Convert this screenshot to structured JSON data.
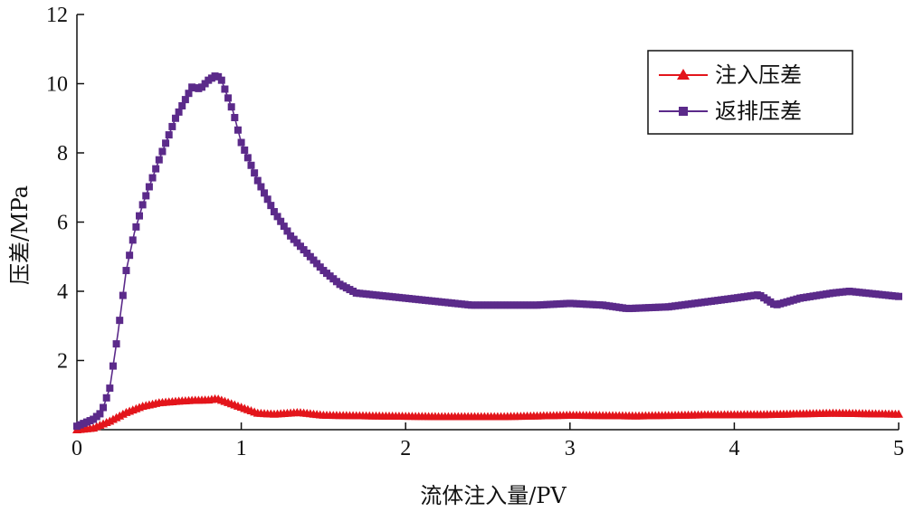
{
  "chart_data": {
    "type": "line",
    "xlabel": "流体注入量/PV",
    "ylabel": "压差/MPa",
    "xlim": [
      0,
      5
    ],
    "ylim": [
      0,
      12
    ],
    "xticks": [
      "0",
      "1",
      "2",
      "3",
      "4",
      "5"
    ],
    "yticks": [
      "2",
      "4",
      "6",
      "8",
      "10",
      "12"
    ],
    "grid": false,
    "legend_position": "top-right",
    "series": [
      {
        "name": "注入压差",
        "color": "#e3151b",
        "marker": "triangle",
        "x": [
          0.0,
          0.1,
          0.2,
          0.3,
          0.4,
          0.5,
          0.6,
          0.7,
          0.8,
          0.85,
          0.9,
          1.0,
          1.1,
          1.2,
          1.35,
          1.5,
          1.8,
          2.2,
          2.6,
          3.0,
          3.4,
          3.8,
          4.2,
          4.6,
          5.0
        ],
        "y": [
          0.0,
          0.05,
          0.25,
          0.5,
          0.68,
          0.78,
          0.82,
          0.85,
          0.86,
          0.9,
          0.82,
          0.65,
          0.48,
          0.45,
          0.5,
          0.42,
          0.4,
          0.38,
          0.38,
          0.42,
          0.4,
          0.43,
          0.44,
          0.48,
          0.45
        ]
      },
      {
        "name": "返排压差",
        "color": "#5b2a8a",
        "marker": "square",
        "x": [
          0.0,
          0.1,
          0.15,
          0.2,
          0.25,
          0.3,
          0.35,
          0.4,
          0.5,
          0.6,
          0.7,
          0.75,
          0.8,
          0.85,
          0.88,
          0.95,
          1.0,
          1.1,
          1.2,
          1.3,
          1.4,
          1.5,
          1.6,
          1.7,
          2.0,
          2.4,
          2.8,
          3.0,
          3.2,
          3.35,
          3.6,
          4.0,
          4.15,
          4.25,
          4.4,
          4.6,
          4.7,
          5.0
        ],
        "y": [
          0.1,
          0.3,
          0.5,
          1.2,
          2.8,
          4.6,
          5.7,
          6.5,
          7.8,
          9.0,
          9.9,
          9.85,
          10.1,
          10.25,
          10.1,
          9.2,
          8.3,
          7.2,
          6.3,
          5.6,
          5.1,
          4.6,
          4.2,
          3.95,
          3.8,
          3.6,
          3.6,
          3.65,
          3.6,
          3.5,
          3.55,
          3.8,
          3.9,
          3.6,
          3.8,
          3.95,
          4.0,
          3.85
        ]
      }
    ]
  }
}
